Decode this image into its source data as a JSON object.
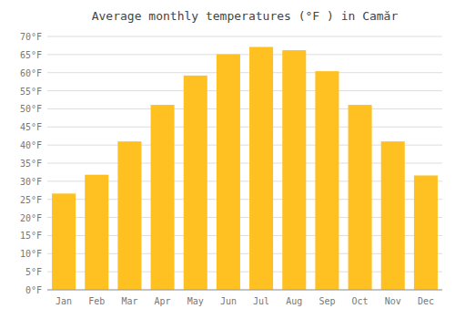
{
  "chart_data": {
    "type": "bar",
    "title": "Average monthly temperatures (°F ) in Camăr",
    "categories": [
      "Jan",
      "Feb",
      "Mar",
      "Apr",
      "May",
      "Jun",
      "Jul",
      "Aug",
      "Sep",
      "Oct",
      "Nov",
      "Dec"
    ],
    "values": [
      26.6,
      31.8,
      41.0,
      51.1,
      59.2,
      65.1,
      67.1,
      66.2,
      60.4,
      51.1,
      41.0,
      31.6
    ],
    "color": "#FFC022",
    "ylim": [
      0,
      70
    ],
    "yticks": [
      {
        "value": 0,
        "label": "0°F"
      },
      {
        "value": 5,
        "label": "5°F"
      },
      {
        "value": 10,
        "label": "10°F"
      },
      {
        "value": 15,
        "label": "15°F"
      },
      {
        "value": 20,
        "label": "20°F"
      },
      {
        "value": 25,
        "label": "25°F"
      },
      {
        "value": 30,
        "label": "30°F"
      },
      {
        "value": 35,
        "label": "35°F"
      },
      {
        "value": 40,
        "label": "40°F"
      },
      {
        "value": 45,
        "label": "45°F"
      },
      {
        "value": 50,
        "label": "50°F"
      },
      {
        "value": 55,
        "label": "55°F"
      },
      {
        "value": 60,
        "label": "60°F"
      },
      {
        "value": 65,
        "label": "65°F"
      },
      {
        "value": 70,
        "label": "70°F"
      }
    ],
    "grid": true
  }
}
